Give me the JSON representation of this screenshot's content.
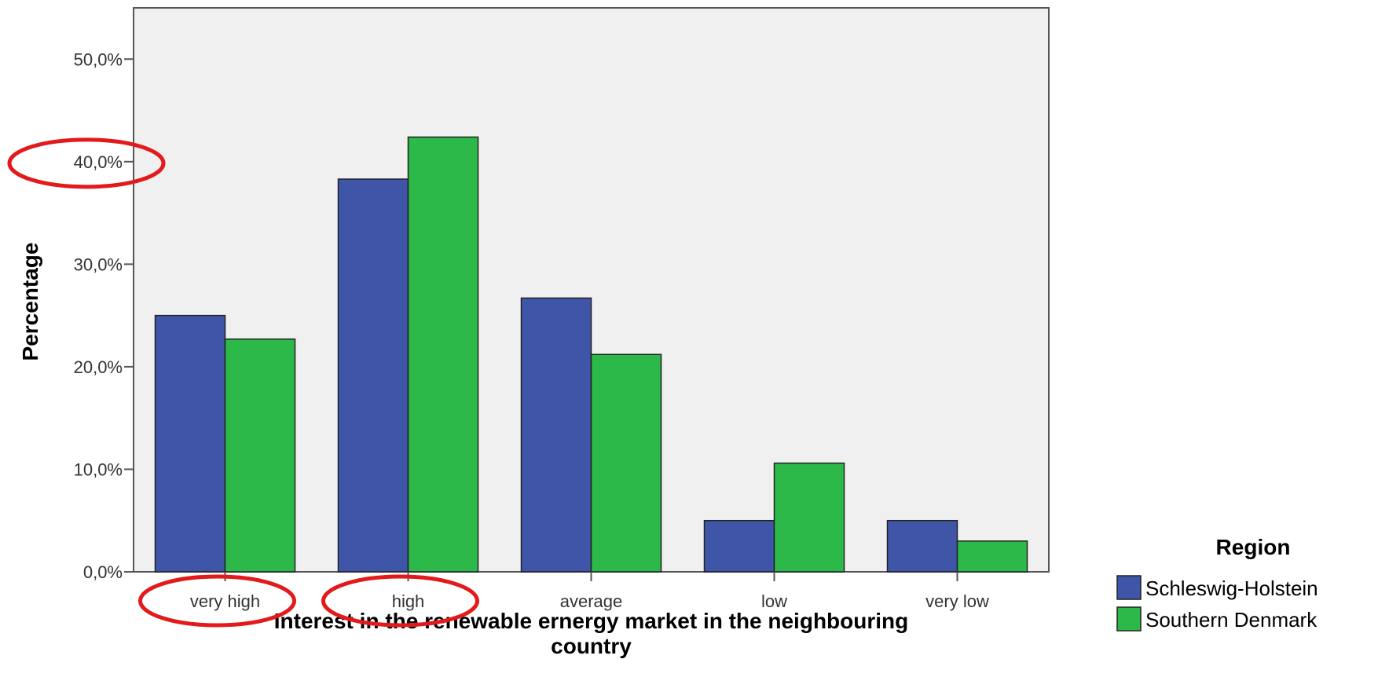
{
  "chart_data": {
    "type": "bar",
    "title": "",
    "xlabel": "Interest in the renewable ernergy market in the neighbouring country",
    "ylabel": "Percentage",
    "categories": [
      "very high",
      "high",
      "average",
      "low",
      "very low"
    ],
    "series": [
      {
        "name": "Schleswig-Holstein",
        "color": "#3f56a8",
        "values": [
          25.0,
          38.3,
          26.7,
          5.0,
          5.0
        ]
      },
      {
        "name": "Southern Denmark",
        "color": "#2db94a",
        "values": [
          22.7,
          42.4,
          21.2,
          10.6,
          3.0
        ]
      }
    ],
    "ylim": [
      0,
      55
    ],
    "yticks": [
      0,
      10,
      20,
      30,
      40,
      50
    ],
    "ytick_labels": [
      "0,0%",
      "10,0%",
      "20,0%",
      "30,0%",
      "40,0%",
      "50,0%"
    ],
    "legend": {
      "title": "Region",
      "placement": "right-bottom"
    },
    "grid": false,
    "plot_background": "#f0f0f0",
    "annotations": {
      "type": "red-ellipse-highlights",
      "color": "#e31a1c",
      "targets": [
        "40,0%",
        "very high",
        "high"
      ]
    }
  }
}
